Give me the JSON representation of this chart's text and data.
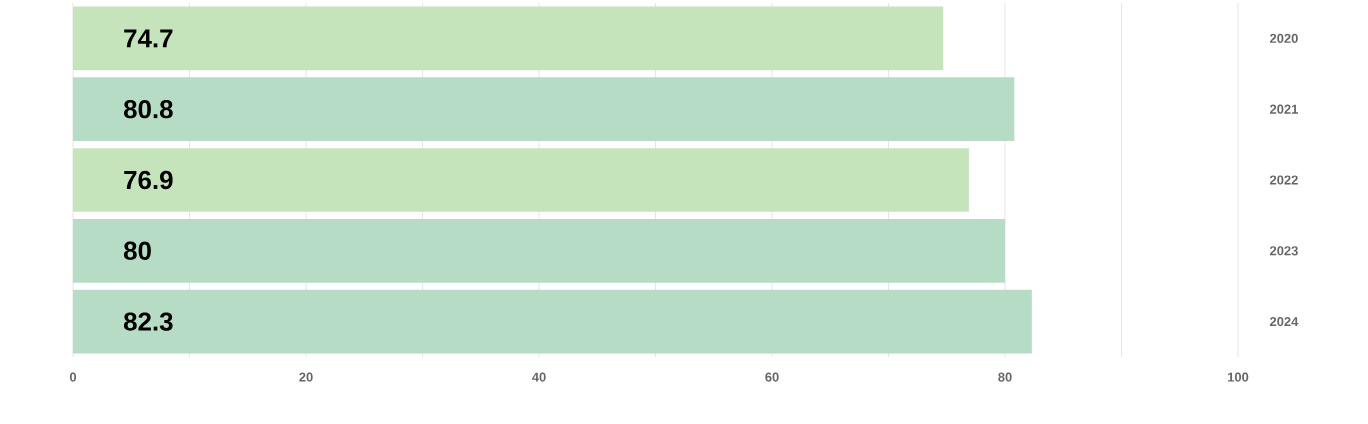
{
  "chart_data": {
    "type": "bar",
    "orientation": "horizontal",
    "categories": [
      "2020",
      "2021",
      "2022",
      "2023",
      "2024"
    ],
    "values": [
      74.7,
      80.8,
      76.9,
      80,
      82.3
    ],
    "colors": [
      "#c5e4bb",
      "#b7dcc6",
      "#c5e4bb",
      "#b7dcc6",
      "#b7dcc6"
    ],
    "xlim": [
      0,
      100
    ],
    "xticks": [
      0,
      {
        "value": 10,
        "label": null
      },
      20,
      {
        "value": 30,
        "label": null
      },
      40,
      {
        "value": 50,
        "label": null
      },
      60,
      {
        "value": 70,
        "label": null
      },
      80,
      {
        "value": 90,
        "label": null
      },
      100
    ],
    "grid": "x",
    "data_labels": true
  }
}
